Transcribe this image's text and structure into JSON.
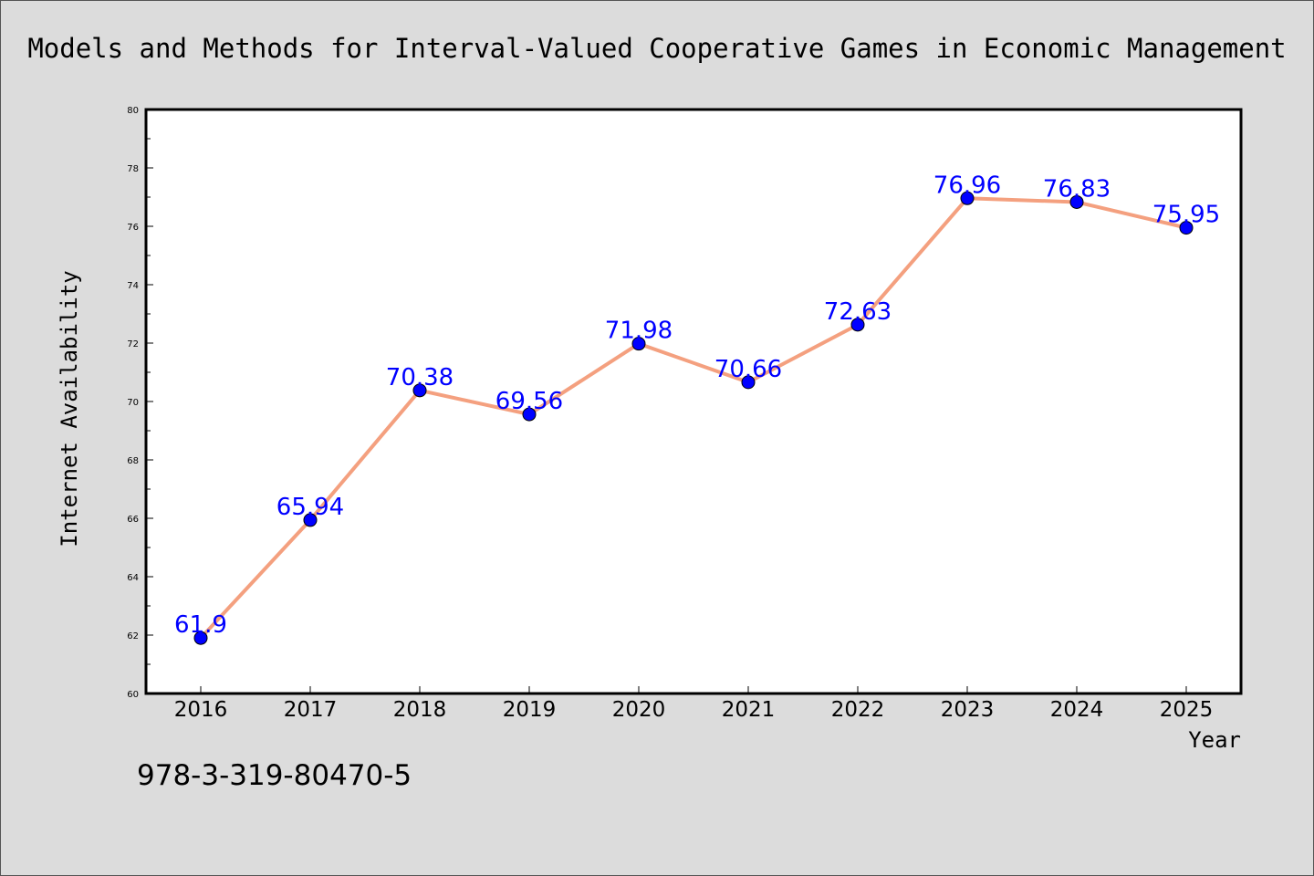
{
  "chart_data": {
    "type": "line",
    "title": "Models and Methods for Interval-Valued Cooperative Games in Economic Management",
    "xlabel": "Year",
    "ylabel": "Internet Availability",
    "categories": [
      "2016",
      "2017",
      "2018",
      "2019",
      "2020",
      "2021",
      "2022",
      "2023",
      "2024",
      "2025"
    ],
    "series": [
      {
        "values": [
          61.9,
          65.94,
          70.38,
          69.56,
          71.98,
          70.66,
          72.63,
          76.96,
          76.83,
          75.95
        ],
        "labels": [
          "61.9",
          "65.94",
          "70.38",
          "69.56",
          "71.98",
          "70.66",
          "72.63",
          "76.96",
          "76.83",
          "75.95"
        ]
      }
    ],
    "ylim": [
      60,
      80
    ],
    "yticks": [
      "60",
      "62",
      "64",
      "66",
      "68",
      "70",
      "72",
      "74",
      "76",
      "78",
      "80"
    ],
    "grid": false,
    "legend": "none",
    "line_color": "#f4a07f",
    "marker_color": "#0000ff",
    "label_color": "#0000ff"
  },
  "footer": {
    "isbn": "978-3-319-80470-5"
  }
}
